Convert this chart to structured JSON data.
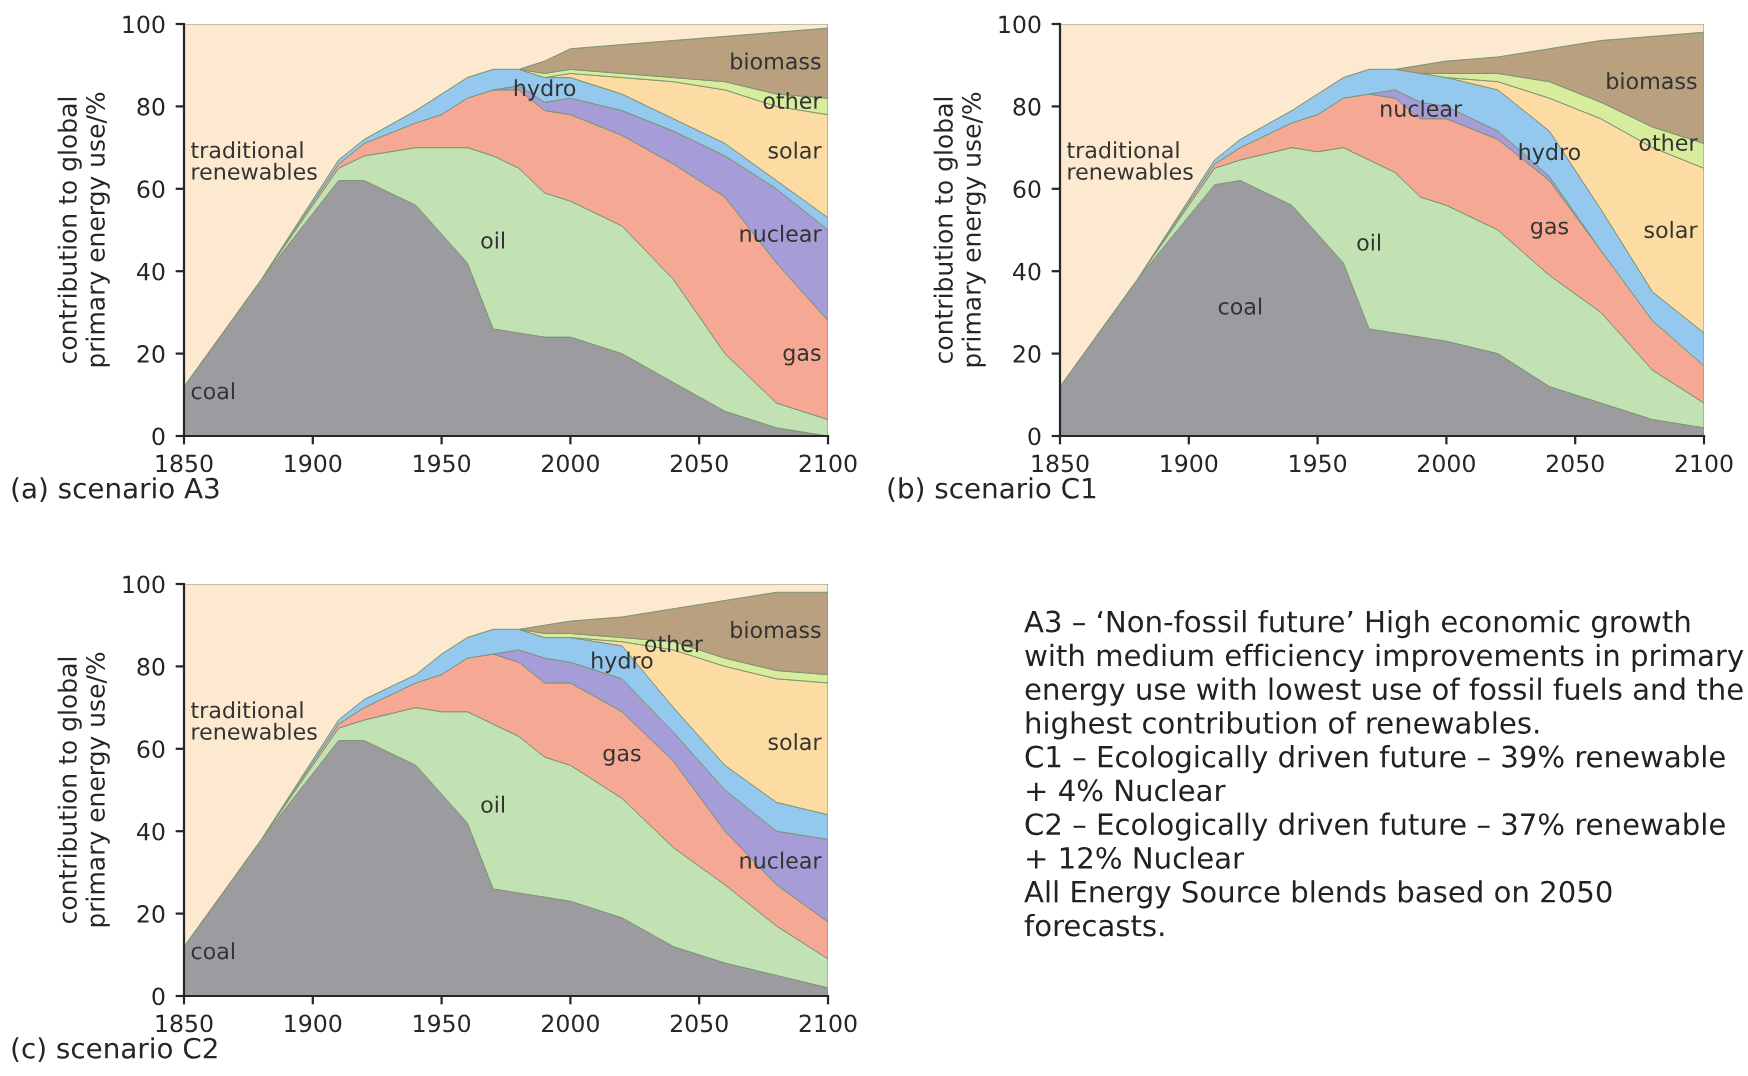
{
  "chart_data": [
    {
      "type": "area",
      "stacked": true,
      "title": "(a) scenario A3",
      "ylabel": "contribution to global\nprimary energy use/%",
      "xlim": [
        1850,
        2100
      ],
      "xticks": [
        1850,
        1900,
        1950,
        2000,
        2050,
        2100
      ],
      "ylim": [
        0,
        100
      ],
      "yticks": [
        0,
        20,
        40,
        60,
        80,
        100
      ],
      "x": [
        1850,
        1880,
        1910,
        1920,
        1940,
        1950,
        1960,
        1970,
        1980,
        1990,
        2000,
        2020,
        2040,
        2060,
        2080,
        2100
      ],
      "series": [
        {
          "name": "coal",
          "color": "#9c9ca0",
          "values": [
            12,
            38,
            62,
            62,
            56,
            49,
            42,
            26,
            25,
            24,
            24,
            20,
            13,
            6,
            2,
            0
          ]
        },
        {
          "name": "oil",
          "color": "#c3e2b4",
          "values": [
            0,
            0,
            3,
            6,
            14,
            21,
            28,
            42,
            40,
            35,
            33,
            31,
            25,
            14,
            6,
            4
          ]
        },
        {
          "name": "gas",
          "color": "#f5a893",
          "values": [
            0,
            0,
            1,
            3,
            6,
            8,
            12,
            16,
            19,
            20,
            21,
            22,
            28,
            38,
            34,
            24
          ]
        },
        {
          "name": "nuclear",
          "color": "#a59cd8",
          "values": [
            null,
            null,
            null,
            null,
            null,
            null,
            null,
            0,
            1,
            2,
            4,
            6,
            8,
            10,
            18,
            22
          ]
        },
        {
          "name": "hydro",
          "color": "#95c8ee",
          "values": [
            0,
            0,
            1,
            1,
            3,
            5,
            5,
            5,
            4,
            6,
            5,
            4,
            3,
            3,
            2,
            3
          ]
        },
        {
          "name": "solar",
          "color": "#fcdca2",
          "values": [
            null,
            null,
            null,
            null,
            null,
            null,
            null,
            null,
            null,
            0,
            1,
            4,
            9,
            13,
            18,
            25
          ]
        },
        {
          "name": "other",
          "color": "#d8ec9e",
          "values": [
            null,
            null,
            null,
            null,
            null,
            null,
            null,
            null,
            0,
            1,
            1,
            1,
            1,
            2,
            3,
            4
          ]
        },
        {
          "name": "biomass",
          "color": "#b9a07f",
          "values": [
            null,
            null,
            null,
            null,
            null,
            null,
            null,
            null,
            0,
            3,
            5,
            7,
            9,
            11,
            15,
            17
          ]
        },
        {
          "name": "traditional renewables",
          "color": "#fce9cf",
          "values": [
            88,
            62,
            33,
            28,
            21,
            17,
            13,
            11,
            11,
            9,
            6,
            5,
            4,
            3,
            2,
            1
          ]
        }
      ]
    },
    {
      "type": "area",
      "stacked": true,
      "title": "(b) scenario C1",
      "ylabel": "contribution to global\nprimary energy use/%",
      "xlim": [
        1850,
        2100
      ],
      "xticks": [
        1850,
        1900,
        1950,
        2000,
        2050,
        2100
      ],
      "ylim": [
        0,
        100
      ],
      "yticks": [
        0,
        20,
        40,
        60,
        80,
        100
      ],
      "x": [
        1850,
        1880,
        1910,
        1920,
        1940,
        1950,
        1960,
        1970,
        1980,
        1990,
        2000,
        2020,
        2040,
        2060,
        2080,
        2100
      ],
      "series": [
        {
          "name": "coal",
          "color": "#9c9ca0",
          "values": [
            12,
            38,
            61,
            62,
            56,
            49,
            42,
            26,
            25,
            24,
            23,
            20,
            12,
            8,
            4,
            2
          ]
        },
        {
          "name": "oil",
          "color": "#c3e2b4",
          "values": [
            0,
            0,
            4,
            5,
            14,
            20,
            28,
            41,
            39,
            34,
            33,
            30,
            27,
            22,
            12,
            6
          ]
        },
        {
          "name": "gas",
          "color": "#f5a893",
          "values": [
            0,
            0,
            1,
            3,
            6,
            9,
            12,
            16,
            18,
            19,
            21,
            22,
            23,
            15,
            12,
            9
          ]
        },
        {
          "name": "nuclear",
          "color": "#a59cd8",
          "values": [
            null,
            null,
            null,
            null,
            null,
            null,
            null,
            0,
            2,
            4,
            3,
            2,
            1,
            0,
            null,
            null
          ]
        },
        {
          "name": "hydro",
          "color": "#95c8ee",
          "values": [
            0,
            0,
            1,
            2,
            3,
            5,
            5,
            6,
            5,
            7,
            7,
            10,
            11,
            10,
            7,
            8
          ]
        },
        {
          "name": "solar",
          "color": "#fcdca2",
          "values": [
            null,
            null,
            null,
            null,
            null,
            null,
            null,
            null,
            null,
            null,
            0,
            2,
            8,
            22,
            35,
            40
          ]
        },
        {
          "name": "other",
          "color": "#d8ec9e",
          "values": [
            null,
            null,
            null,
            null,
            null,
            null,
            null,
            null,
            null,
            0,
            1,
            2,
            4,
            4,
            5,
            6
          ]
        },
        {
          "name": "biomass",
          "color": "#b9a07f",
          "values": [
            null,
            null,
            null,
            null,
            null,
            null,
            null,
            null,
            0,
            2,
            3,
            4,
            8,
            15,
            22,
            27
          ]
        },
        {
          "name": "traditional renewables",
          "color": "#fce9cf",
          "values": [
            88,
            62,
            33,
            28,
            21,
            17,
            13,
            11,
            11,
            10,
            9,
            8,
            6,
            4,
            3,
            2
          ]
        }
      ]
    },
    {
      "type": "area",
      "stacked": true,
      "title": "(c) scenario C2",
      "ylabel": "contribution to global\nprimary energy use/%",
      "xlim": [
        1850,
        2100
      ],
      "xticks": [
        1850,
        1900,
        1950,
        2000,
        2050,
        2100
      ],
      "ylim": [
        0,
        100
      ],
      "yticks": [
        0,
        20,
        40,
        60,
        80,
        100
      ],
      "x": [
        1850,
        1880,
        1910,
        1920,
        1940,
        1950,
        1960,
        1970,
        1980,
        1990,
        2000,
        2020,
        2040,
        2060,
        2080,
        2100
      ],
      "series": [
        {
          "name": "coal",
          "color": "#9c9ca0",
          "values": [
            12,
            38,
            62,
            62,
            56,
            49,
            42,
            26,
            25,
            24,
            23,
            19,
            12,
            8,
            5,
            2
          ]
        },
        {
          "name": "oil",
          "color": "#c3e2b4",
          "values": [
            0,
            0,
            3,
            5,
            14,
            20,
            27,
            40,
            38,
            34,
            33,
            29,
            24,
            19,
            12,
            7
          ]
        },
        {
          "name": "gas",
          "color": "#f5a893",
          "values": [
            0,
            0,
            1,
            3,
            6,
            9,
            13,
            17,
            18,
            18,
            20,
            21,
            21,
            13,
            10,
            9
          ]
        },
        {
          "name": "nuclear",
          "color": "#a59cd8",
          "values": [
            null,
            null,
            null,
            null,
            null,
            null,
            null,
            0,
            3,
            6,
            5,
            8,
            7,
            10,
            13,
            20
          ]
        },
        {
          "name": "hydro",
          "color": "#95c8ee",
          "values": [
            0,
            0,
            1,
            2,
            2,
            5,
            5,
            6,
            5,
            5,
            6,
            8,
            6,
            6,
            7,
            6
          ]
        },
        {
          "name": "solar",
          "color": "#fcdca2",
          "values": [
            null,
            null,
            null,
            null,
            null,
            null,
            null,
            null,
            null,
            null,
            0,
            1,
            14,
            24,
            30,
            32
          ]
        },
        {
          "name": "other",
          "color": "#d8ec9e",
          "values": [
            null,
            null,
            null,
            null,
            null,
            null,
            null,
            null,
            0,
            1,
            1,
            1,
            2,
            2,
            2,
            2
          ]
        },
        {
          "name": "biomass",
          "color": "#b9a07f",
          "values": [
            null,
            null,
            null,
            null,
            null,
            null,
            null,
            null,
            0,
            2,
            3,
            5,
            8,
            14,
            19,
            20
          ]
        },
        {
          "name": "traditional renewables",
          "color": "#fce9cf",
          "values": [
            88,
            62,
            33,
            28,
            22,
            17,
            13,
            11,
            11,
            10,
            9,
            8,
            6,
            4,
            2,
            2
          ]
        }
      ]
    },
    {
      "type": "other",
      "annotations": [
        "A3 – ‘Non-fossil future’ High economic growth with medium efficiency improvements in primary energy use with lowest use of fossil fuels and the highest contribution of renewables.",
        "C1 – Ecologically driven future – 39% renewable + 4% Nuclear",
        "C2 – Ecologically driven future – 37% renewable + 12% Nuclear",
        "All Energy Source blends based on 2050 forecasts."
      ]
    }
  ]
}
